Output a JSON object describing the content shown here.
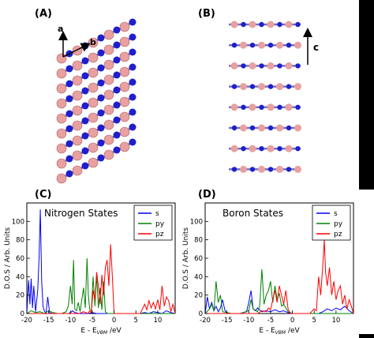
{
  "panels": {
    "a": {
      "label": "(A)",
      "axis_a": "a",
      "axis_b": "b"
    },
    "b": {
      "label": "(B)",
      "axis_c": "c"
    },
    "c": {
      "label": "(C)"
    },
    "d": {
      "label": "(D)"
    }
  },
  "colors": {
    "nitrogen": "#1f1fcc",
    "boron": "#e8a0a0",
    "s": "#0000ff",
    "py": "#008000",
    "pz": "#ff0000"
  },
  "chart_data": [
    {
      "type": "line",
      "title": "Nitrogen States",
      "xlabel": "E - E_VBM /eV",
      "ylabel": "D.O.S / Arb. Units",
      "xlim": [
        -20,
        14
      ],
      "ylim": [
        0,
        120
      ],
      "xticks": [
        -20,
        -15,
        -10,
        -5,
        0,
        5,
        10
      ],
      "yticks": [
        0,
        20,
        40,
        60,
        80,
        100
      ],
      "legend_position": "top-right",
      "series": [
        {
          "name": "s",
          "color": "#0000ff",
          "x": [
            -20,
            -19.6,
            -19.3,
            -19,
            -18.7,
            -18.4,
            -18,
            -17.5,
            -17.2,
            -16.9,
            -16.6,
            -16.3,
            -16,
            -15.6,
            -15.2,
            -14.8,
            -14,
            -13,
            -12,
            -11,
            -10.5,
            -10,
            -9.5,
            -9,
            -8,
            -7,
            -6,
            -5,
            -4,
            -3,
            -2,
            -1,
            0,
            2,
            4,
            6,
            7,
            8,
            9,
            10,
            11,
            12,
            13,
            14
          ],
          "y": [
            0,
            36,
            10,
            38,
            6,
            30,
            2,
            25,
            60,
            113,
            35,
            8,
            3,
            0,
            18,
            1,
            0,
            0,
            0,
            0,
            0,
            1,
            3,
            1,
            0,
            0,
            0,
            1,
            0,
            0,
            0,
            0,
            0,
            0,
            0,
            0,
            1,
            0,
            2,
            1,
            0,
            3,
            1,
            0
          ]
        },
        {
          "name": "py",
          "color": "#008000",
          "x": [
            -20,
            -19,
            -18,
            -17,
            -16,
            -15,
            -14,
            -13,
            -12,
            -11,
            -10.5,
            -10,
            -9.6,
            -9.3,
            -9,
            -8.6,
            -8.2,
            -7.8,
            -7.4,
            -7,
            -6.6,
            -6.2,
            -5.9,
            -5.6,
            -5.2,
            -4.8,
            -4.4,
            -4,
            -3.6,
            -3.2,
            -2.8,
            -2.4,
            -2,
            -1.5,
            -1,
            0,
            5,
            10,
            14
          ],
          "y": [
            0,
            3,
            1,
            2,
            0,
            3,
            1,
            0,
            0,
            2,
            8,
            30,
            10,
            58,
            5,
            3,
            12,
            2,
            15,
            28,
            6,
            60,
            20,
            5,
            3,
            40,
            8,
            42,
            6,
            28,
            4,
            35,
            2,
            0,
            0,
            0,
            0,
            0,
            0
          ]
        },
        {
          "name": "pz",
          "color": "#ff0000",
          "x": [
            -20,
            -10,
            -8,
            -7,
            -6,
            -5.6,
            -5.2,
            -4.8,
            -4.4,
            -4,
            -3.6,
            -3.2,
            -2.8,
            -2.4,
            -2,
            -1.6,
            -1.2,
            -0.8,
            -0.4,
            0,
            1,
            2,
            3,
            4,
            5,
            6,
            7,
            7.5,
            8,
            8.5,
            9,
            9.5,
            10,
            10.5,
            11,
            11.5,
            12,
            12.5,
            13,
            13.5,
            14
          ],
          "y": [
            0,
            0,
            0,
            2,
            0,
            3,
            1,
            25,
            15,
            45,
            30,
            10,
            42,
            20,
            50,
            58,
            30,
            75,
            40,
            0,
            0,
            0,
            0,
            0,
            0,
            0,
            10,
            4,
            14,
            6,
            12,
            5,
            15,
            4,
            30,
            8,
            18,
            14,
            2,
            10,
            0
          ]
        }
      ]
    },
    {
      "type": "line",
      "title": "Boron States",
      "xlabel": "E - E_VBM /eV",
      "ylabel": "D.O.S / Arb. Units",
      "xlim": [
        -20,
        14
      ],
      "ylim": [
        0,
        120
      ],
      "xticks": [
        -20,
        -15,
        -10,
        -5,
        0,
        5,
        10
      ],
      "yticks": [
        0,
        20,
        40,
        60,
        80,
        100
      ],
      "legend_position": "top-right",
      "series": [
        {
          "name": "s",
          "color": "#0000ff",
          "x": [
            -20,
            -19.5,
            -19,
            -18.5,
            -18,
            -17.5,
            -17,
            -16.5,
            -16,
            -15.5,
            -15,
            -12,
            -10.5,
            -10,
            -9.5,
            -9,
            -8.5,
            -8,
            -7,
            -6,
            -5,
            -4,
            -3,
            -2,
            -1,
            0,
            4,
            6,
            7,
            8,
            9,
            10,
            11,
            12,
            13,
            14
          ],
          "y": [
            0,
            18,
            5,
            12,
            3,
            8,
            2,
            6,
            15,
            4,
            0,
            0,
            2,
            12,
            25,
            5,
            3,
            6,
            2,
            3,
            2,
            4,
            2,
            3,
            1,
            0,
            0,
            0,
            2,
            5,
            3,
            6,
            4,
            8,
            3,
            0
          ]
        },
        {
          "name": "py",
          "color": "#008000",
          "x": [
            -20,
            -19,
            -18.5,
            -18,
            -17.5,
            -17,
            -16.5,
            -16,
            -15,
            -14,
            -12,
            -10,
            -9.5,
            -9,
            -8,
            -7.5,
            -7,
            -6.5,
            -6,
            -5.5,
            -5,
            -4.5,
            -4,
            -3.5,
            -3,
            -2.5,
            -2,
            -1,
            0,
            5,
            10,
            14
          ],
          "y": [
            0,
            5,
            10,
            3,
            35,
            12,
            20,
            2,
            1,
            0,
            0,
            3,
            15,
            5,
            2,
            8,
            48,
            10,
            20,
            25,
            35,
            12,
            30,
            15,
            22,
            8,
            10,
            2,
            0,
            0,
            0,
            0
          ]
        },
        {
          "name": "pz",
          "color": "#ff0000",
          "x": [
            -20,
            -10,
            -8,
            -7,
            -6,
            -5.5,
            -5,
            -4.5,
            -4,
            -3.5,
            -3,
            -2.5,
            -2,
            -1.5,
            -1,
            -0.5,
            0,
            4,
            5,
            5.5,
            6,
            6.5,
            7,
            7.3,
            7.6,
            8,
            8.5,
            9,
            9.5,
            10,
            10.5,
            11,
            11.5,
            12,
            12.5,
            13,
            13.5,
            14
          ],
          "y": [
            0,
            0,
            0,
            3,
            2,
            6,
            4,
            15,
            25,
            12,
            30,
            20,
            10,
            25,
            5,
            0,
            0,
            0,
            5,
            3,
            40,
            20,
            55,
            80,
            45,
            30,
            50,
            20,
            35,
            15,
            25,
            30,
            10,
            20,
            5,
            15,
            8,
            0
          ]
        }
      ]
    }
  ]
}
